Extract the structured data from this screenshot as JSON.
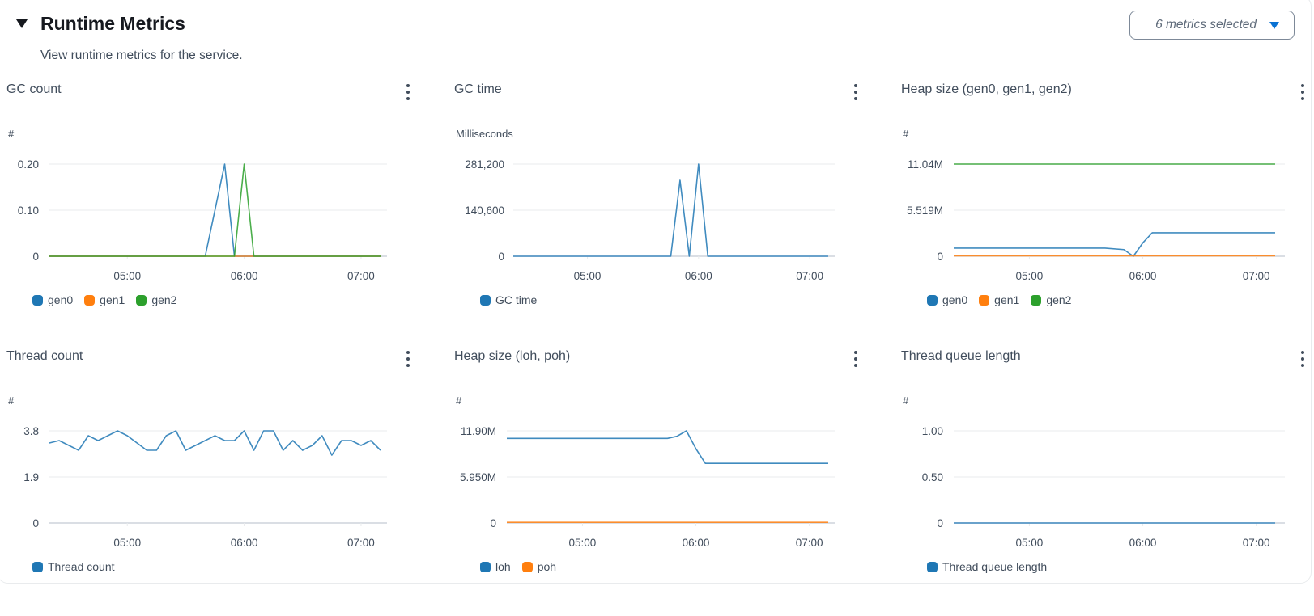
{
  "header": {
    "title": "Runtime Metrics",
    "subtitle": "View runtime metrics for the service.",
    "toggle_icon": "caret-down-icon",
    "metrics_dropdown": {
      "label": "6 metrics selected",
      "icon": "caret-down-icon"
    }
  },
  "colors": {
    "blue": "#1f77b4",
    "orange": "#ff7f0e",
    "green": "#2ca02c",
    "grid": "#e9ebed",
    "axis": "#b6bec9"
  },
  "panels": [
    {
      "title": "GC count",
      "unit": "#",
      "menu_icon": "kebab-menu-icon",
      "legend": [
        {
          "label": "gen0",
          "color": "#1f77b4"
        },
        {
          "label": "gen1",
          "color": "#ff7f0e"
        },
        {
          "label": "gen2",
          "color": "#2ca02c"
        }
      ]
    },
    {
      "title": "GC time",
      "unit": "Milliseconds",
      "menu_icon": "kebab-menu-icon",
      "legend": [
        {
          "label": "GC time",
          "color": "#1f77b4"
        }
      ]
    },
    {
      "title": "Heap size (gen0, gen1, gen2)",
      "unit": "#",
      "menu_icon": "kebab-menu-icon",
      "legend": [
        {
          "label": "gen0",
          "color": "#1f77b4"
        },
        {
          "label": "gen1",
          "color": "#ff7f0e"
        },
        {
          "label": "gen2",
          "color": "#2ca02c"
        }
      ]
    },
    {
      "title": "Thread count",
      "unit": "#",
      "menu_icon": "kebab-menu-icon",
      "legend": [
        {
          "label": "Thread count",
          "color": "#1f77b4"
        }
      ]
    },
    {
      "title": "Heap size (loh, poh)",
      "unit": "#",
      "menu_icon": "kebab-menu-icon",
      "legend": [
        {
          "label": "loh",
          "color": "#1f77b4"
        },
        {
          "label": "poh",
          "color": "#ff7f0e"
        }
      ]
    },
    {
      "title": "Thread queue length",
      "unit": "#",
      "menu_icon": "kebab-menu-icon",
      "legend": [
        {
          "label": "Thread queue length",
          "color": "#1f77b4"
        }
      ]
    }
  ],
  "chart_data": [
    {
      "type": "line",
      "title": "GC count",
      "ylabel": "#",
      "x_range": [
        "04:20",
        "07:10"
      ],
      "x_ticks": [
        "05:00",
        "06:00",
        "07:00"
      ],
      "y_ticks": [
        "0",
        "0.10",
        "0.20"
      ],
      "ylim": [
        0,
        0.2
      ],
      "grid": true,
      "legend_position": "bottom",
      "series": [
        {
          "name": "gen0",
          "color": "#1f77b4",
          "points": [
            [
              "04:20",
              0
            ],
            [
              "05:40",
              0
            ],
            [
              "05:50",
              0.2
            ],
            [
              "05:55",
              0
            ],
            [
              "07:10",
              0
            ]
          ]
        },
        {
          "name": "gen1",
          "color": "#ff7f0e",
          "points": [
            [
              "04:20",
              0
            ],
            [
              "07:10",
              0
            ]
          ]
        },
        {
          "name": "gen2",
          "color": "#2ca02c",
          "points": [
            [
              "04:20",
              0
            ],
            [
              "05:55",
              0
            ],
            [
              "06:00",
              0.2
            ],
            [
              "06:05",
              0
            ],
            [
              "07:10",
              0
            ]
          ]
        }
      ]
    },
    {
      "type": "line",
      "title": "GC time",
      "ylabel": "Milliseconds",
      "x_range": [
        "04:20",
        "07:10"
      ],
      "x_ticks": [
        "05:00",
        "06:00",
        "07:00"
      ],
      "y_ticks": [
        "0",
        "140,600",
        "281,200"
      ],
      "ylim": [
        0,
        281200
      ],
      "grid": true,
      "legend_position": "bottom",
      "series": [
        {
          "name": "GC time",
          "color": "#1f77b4",
          "points": [
            [
              "04:20",
              0
            ],
            [
              "05:45",
              0
            ],
            [
              "05:50",
              231900
            ],
            [
              "05:55",
              0
            ],
            [
              "06:00",
              281200
            ],
            [
              "06:05",
              0
            ],
            [
              "07:10",
              0
            ]
          ]
        }
      ]
    },
    {
      "type": "line",
      "title": "Heap size (gen0, gen1, gen2)",
      "ylabel": "#",
      "x_range": [
        "04:20",
        "07:10"
      ],
      "x_ticks": [
        "05:00",
        "06:00",
        "07:00"
      ],
      "y_ticks": [
        "0",
        "5.519M",
        "11.04M"
      ],
      "ylim": [
        0,
        11040000
      ],
      "grid": true,
      "legend_position": "bottom",
      "series": [
        {
          "name": "gen0",
          "color": "#1f77b4",
          "points": [
            [
              "04:20",
              970000
            ],
            [
              "05:40",
              970000
            ],
            [
              "05:50",
              800000
            ],
            [
              "05:55",
              0
            ],
            [
              "06:00",
              1600000
            ],
            [
              "06:05",
              2810000
            ],
            [
              "07:10",
              2810000
            ]
          ]
        },
        {
          "name": "gen1",
          "color": "#ff7f0e",
          "points": [
            [
              "04:20",
              50000
            ],
            [
              "07:10",
              50000
            ]
          ]
        },
        {
          "name": "gen2",
          "color": "#2ca02c",
          "points": [
            [
              "04:20",
              11040000
            ],
            [
              "07:10",
              11040000
            ]
          ]
        }
      ]
    },
    {
      "type": "line",
      "title": "Thread count",
      "ylabel": "#",
      "x_range": [
        "04:20",
        "07:10"
      ],
      "x_ticks": [
        "05:00",
        "06:00",
        "07:00"
      ],
      "y_ticks": [
        "0",
        "1.9",
        "3.8"
      ],
      "ylim": [
        0,
        3.8
      ],
      "grid": true,
      "legend_position": "bottom",
      "series": [
        {
          "name": "Thread count",
          "color": "#1f77b4",
          "interval_min": 5,
          "start": "04:20",
          "values": [
            3.3,
            3.4,
            3.2,
            3.0,
            3.6,
            3.4,
            3.6,
            3.8,
            3.6,
            3.3,
            3.0,
            3.0,
            3.6,
            3.8,
            3.0,
            3.2,
            3.4,
            3.6,
            3.4,
            3.4,
            3.8,
            3.0,
            3.8,
            3.8,
            3.0,
            3.4,
            3.0,
            3.2,
            3.6,
            2.8,
            3.4,
            3.4,
            3.2,
            3.4,
            3.0
          ]
        }
      ]
    },
    {
      "type": "line",
      "title": "Heap size (loh, poh)",
      "ylabel": "#",
      "x_range": [
        "04:20",
        "07:10"
      ],
      "x_ticks": [
        "05:00",
        "06:00",
        "07:00"
      ],
      "y_ticks": [
        "0",
        "5.950M",
        "11.90M"
      ],
      "ylim": [
        0,
        11900000
      ],
      "grid": true,
      "legend_position": "bottom",
      "series": [
        {
          "name": "loh",
          "color": "#1f77b4",
          "points": [
            [
              "04:20",
              10930000
            ],
            [
              "05:45",
              10930000
            ],
            [
              "05:50",
              11200000
            ],
            [
              "05:55",
              11900000
            ],
            [
              "06:00",
              9600000
            ],
            [
              "06:05",
              7700000
            ],
            [
              "07:10",
              7700000
            ]
          ]
        },
        {
          "name": "poh",
          "color": "#ff7f0e",
          "points": [
            [
              "04:20",
              80000
            ],
            [
              "07:10",
              80000
            ]
          ]
        }
      ]
    },
    {
      "type": "line",
      "title": "Thread queue length",
      "ylabel": "#",
      "x_range": [
        "04:20",
        "07:10"
      ],
      "x_ticks": [
        "05:00",
        "06:00",
        "07:00"
      ],
      "y_ticks": [
        "0",
        "0.50",
        "1.00"
      ],
      "ylim": [
        0,
        1.0
      ],
      "grid": true,
      "legend_position": "bottom",
      "series": [
        {
          "name": "Thread queue length",
          "color": "#1f77b4",
          "points": [
            [
              "04:20",
              0
            ],
            [
              "07:10",
              0
            ]
          ]
        }
      ]
    }
  ]
}
